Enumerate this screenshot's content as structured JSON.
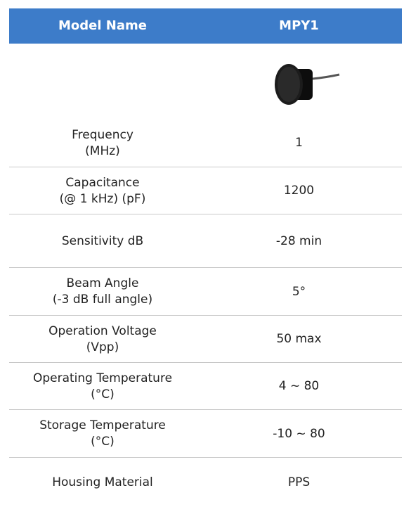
{
  "header": {
    "label": "Model Name",
    "model": "MPY1"
  },
  "rows": [
    {
      "label": [
        "Frequency",
        "(MHz)"
      ],
      "value": "1"
    },
    {
      "label": [
        "Capacitance",
        "(@ 1 kHz) (pF)"
      ],
      "value": "1200"
    },
    {
      "label": [
        "Sensitivity dB"
      ],
      "value": "-28 min"
    },
    {
      "label": [
        "Beam Angle",
        "(-3 dB full angle)"
      ],
      "value": "5°"
    },
    {
      "label": [
        "Operation Voltage",
        "(Vpp)"
      ],
      "value": "50 max"
    },
    {
      "label": [
        "Operating Temperature",
        "(°C)"
      ],
      "value": "4 ~ 80"
    },
    {
      "label": [
        "Storage Temperature",
        "(°C)"
      ],
      "value": "-10 ~ 80"
    },
    {
      "label": [
        "Housing Material"
      ],
      "value": "PPS"
    }
  ]
}
